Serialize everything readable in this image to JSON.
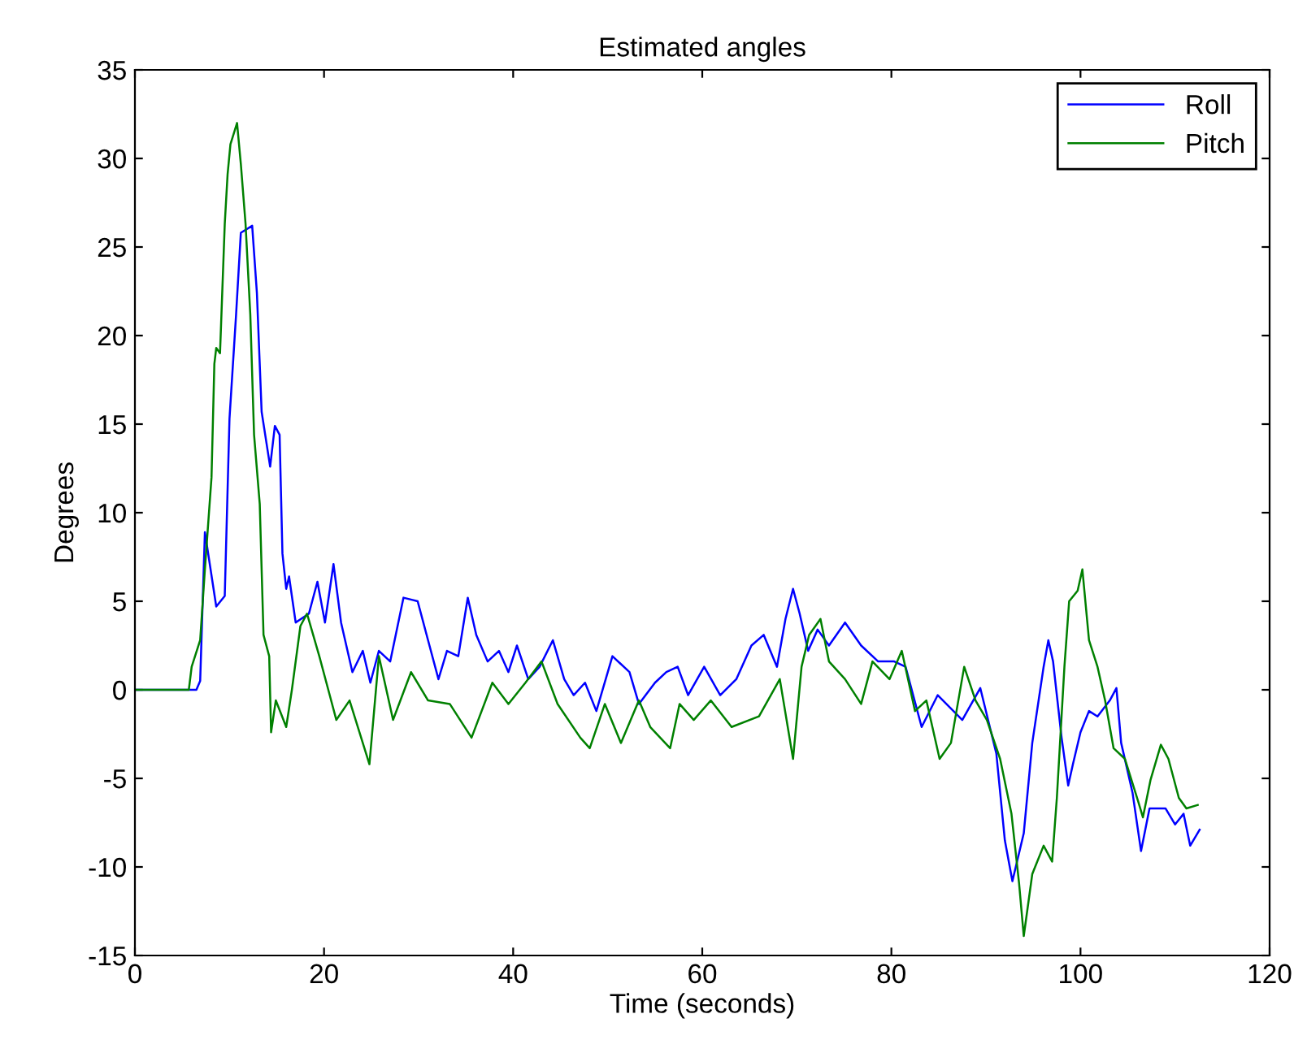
{
  "chart_data": {
    "type": "line",
    "title": "Estimated angles",
    "xlabel": "Time (seconds)",
    "ylabel": "Degrees",
    "xlim": [
      0,
      120
    ],
    "ylim": [
      -15,
      35
    ],
    "xticks": [
      0,
      20,
      40,
      60,
      80,
      100,
      120
    ],
    "yticks": [
      -15,
      -10,
      -5,
      0,
      5,
      10,
      15,
      20,
      25,
      30,
      35
    ],
    "grid": false,
    "legend": "top right",
    "series": [
      {
        "name": "Roll",
        "color": "#0000ff",
        "x": [
          0,
          6.5,
          6.9,
          7.4,
          8.6,
          9.5,
          10,
          10.7,
          11.2,
          12.4,
          12.9,
          13.4,
          14.3,
          14.8,
          15.3,
          15.6,
          16,
          16.3,
          17,
          18.4,
          19.3,
          20.1,
          21,
          21.8,
          23,
          24.1,
          24.9,
          25.8,
          27,
          28.4,
          29.9,
          31,
          32.1,
          33,
          34.2,
          35.2,
          36.1,
          37.3,
          38.5,
          39.5,
          40.4,
          41.6,
          42.8,
          44.2,
          45.4,
          46.4,
          47.6,
          48.8,
          50.5,
          52.3,
          53.3,
          55,
          56.2,
          57.4,
          58.5,
          60.2,
          61.9,
          63.6,
          65.2,
          66.5,
          67.9,
          68.8,
          69.6,
          70.3,
          71.2,
          72.2,
          73.4,
          75.1,
          76.8,
          78.6,
          80.3,
          81.5,
          83.2,
          84.9,
          87.5,
          89.4,
          91.1,
          92,
          92.8,
          94,
          94.9,
          96.1,
          96.6,
          97.1,
          98,
          98.7,
          99.2,
          100,
          100.9,
          101.8,
          103.1,
          103.8,
          104.3,
          105.5,
          106.4,
          107.3,
          109,
          110,
          110.9,
          111.6,
          112.6
        ],
        "values": [
          0,
          0,
          0.5,
          8.9,
          4.7,
          5.3,
          15.3,
          21.2,
          25.8,
          26.2,
          22.4,
          15.7,
          12.6,
          14.9,
          14.4,
          7.7,
          5.7,
          6.4,
          3.8,
          4.3,
          6.1,
          3.8,
          7.1,
          3.8,
          1,
          2.2,
          0.4,
          2.2,
          1.6,
          5.2,
          5,
          2.8,
          0.6,
          2.2,
          1.9,
          5.2,
          3.1,
          1.6,
          2.2,
          1,
          2.5,
          0.6,
          1.3,
          2.8,
          0.6,
          -0.3,
          0.4,
          -1.2,
          1.9,
          1,
          -0.8,
          0.4,
          1,
          1.3,
          -0.3,
          1.3,
          -0.3,
          0.6,
          2.5,
          3.1,
          1.3,
          4,
          5.7,
          4.3,
          2.2,
          3.4,
          2.5,
          3.8,
          2.5,
          1.6,
          1.6,
          1.3,
          -2.1,
          -0.3,
          -1.7,
          0.1,
          -3.6,
          -8.5,
          -10.8,
          -8.1,
          -3,
          1.3,
          2.8,
          1.6,
          -2.7,
          -5.4,
          -4.2,
          -2.4,
          -1.2,
          -1.5,
          -0.6,
          0.1,
          -3,
          -5.8,
          -9.1,
          -6.7,
          -6.7,
          -7.6,
          -7,
          -8.8,
          -7.9
        ]
      },
      {
        "name": "Pitch",
        "color": "#008000",
        "x": [
          0,
          5.7,
          6,
          6.9,
          7.4,
          8.1,
          8.4,
          8.6,
          9,
          9.5,
          9.8,
          10.1,
          10.8,
          11.2,
          11.7,
          12.2,
          12.6,
          13.2,
          13.6,
          14.2,
          14.4,
          14.9,
          16,
          16.6,
          17.5,
          18.2,
          19.5,
          20.6,
          21.3,
          22.7,
          24.8,
          25.8,
          27.3,
          29.2,
          31,
          33.3,
          35.6,
          37.8,
          39.5,
          41.3,
          43,
          44.7,
          47.1,
          48.1,
          49.7,
          51.4,
          53.3,
          54.5,
          56.6,
          57.6,
          59.1,
          60.9,
          63.1,
          66,
          68.2,
          69.6,
          70.5,
          71.3,
          72.5,
          73.4,
          75.1,
          76.8,
          78,
          79.8,
          81.1,
          82.5,
          83.7,
          85.1,
          86.3,
          87.7,
          88.9,
          90.1,
          91.5,
          92.7,
          93.5,
          94,
          94.9,
          96.1,
          97,
          97.5,
          98.3,
          98.8,
          99.7,
          100.2,
          100.9,
          101.8,
          102.6,
          103.5,
          104.7,
          106.1,
          106.6,
          107.4,
          108.5,
          109.3,
          110.4,
          111.2,
          112.4
        ],
        "values": [
          0,
          0,
          1.3,
          2.8,
          6.8,
          12,
          18.4,
          19.3,
          19,
          26.3,
          29.1,
          30.8,
          32,
          29.7,
          26.3,
          21.2,
          14.4,
          10.5,
          3.1,
          1.9,
          -2.4,
          -0.6,
          -2.1,
          0,
          3.6,
          4.3,
          1.9,
          -0.3,
          -1.7,
          -0.6,
          -4.2,
          1.9,
          -1.7,
          1,
          -0.6,
          -0.8,
          -2.7,
          0.4,
          -0.8,
          0.4,
          1.6,
          -0.8,
          -2.7,
          -3.3,
          -0.8,
          -3,
          -0.6,
          -2.1,
          -3.3,
          -0.8,
          -1.7,
          -0.6,
          -2.1,
          -1.5,
          0.6,
          -3.9,
          1.3,
          3.1,
          4,
          1.6,
          0.6,
          -0.8,
          1.6,
          0.6,
          2.2,
          -1.2,
          -0.6,
          -3.9,
          -3,
          1.3,
          -0.6,
          -1.7,
          -3.9,
          -7,
          -10.9,
          -13.9,
          -10.4,
          -8.8,
          -9.7,
          -6.1,
          1.3,
          5,
          5.6,
          6.8,
          2.8,
          1.3,
          -0.6,
          -3.3,
          -3.9,
          -6.3,
          -7.2,
          -5.1,
          -3.1,
          -3.9,
          -6.1,
          -6.7,
          -6.5
        ]
      }
    ]
  }
}
